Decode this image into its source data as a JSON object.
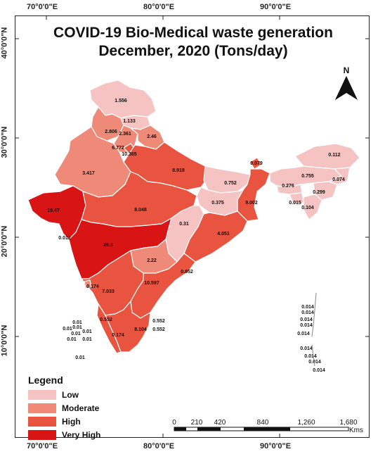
{
  "map": {
    "title_line1": "COVID-19 Bio-Medical waste generation",
    "title_line2": "December, 2020 (Tons/day)",
    "north_label": "N",
    "lon_labels": [
      "70°0'0\"E",
      "80°0'0\"E",
      "90°0'0\"E"
    ],
    "lat_labels": [
      "40°0'0\"N",
      "30°0'0\"N",
      "20°0'0\"N",
      "10°0'0\"N"
    ],
    "colors": {
      "low": "#f6c3c3",
      "moderate": "#f08a78",
      "high": "#e8543f",
      "very_high": "#d91414",
      "border": "#ffffff"
    },
    "values": {
      "jk": "1.556",
      "hp": "1.133",
      "pb": "2.806",
      "hr": "2.361",
      "uk": "2.46",
      "ch": "6.772",
      "dl": "10.365",
      "rj": "3.417",
      "up": "8.918",
      "bh": "0.752",
      "sk": "0.079",
      "ar": "0.112",
      "as": "0.755",
      "nl": "0.074",
      "ml": "0.276",
      "mn": "0.299",
      "tr": "0.015",
      "mz": "0.104",
      "jh": "0.375",
      "wb": "9.002",
      "gj": "19.47",
      "mp": "8.048",
      "ct": "0.31",
      "or": "4.051",
      "dd": "0.012",
      "mh": "26.3",
      "tg": "2.22",
      "ap": "0.852",
      "ka": "10.597",
      "ga": "0.174",
      "tn": "7.033",
      "kl": "0.552",
      "py": "0.552",
      "py2": "0.552",
      "tn2": "8.104",
      "ld": "0.01",
      "an": "0.014"
    },
    "lakshadweep_values": [
      "0.01",
      "0.01",
      "0.01",
      "0.01",
      "0.01",
      "0.01",
      "0.01",
      "0.01",
      "0.01"
    ],
    "andaman_values": [
      "0.014",
      "0.014",
      "0.014",
      "0.014",
      "0.014",
      "0.014",
      "0.014",
      "0.014"
    ],
    "legend": {
      "title": "Legend",
      "items": [
        {
          "label": "Low",
          "color": "#f6c3c3"
        },
        {
          "label": "Moderate",
          "color": "#f08a78"
        },
        {
          "label": "High",
          "color": "#e8543f"
        },
        {
          "label": "Very High",
          "color": "#d91414"
        }
      ]
    },
    "scale": {
      "ticks": [
        "0",
        "210",
        "420",
        "840",
        "1,260",
        "1,680"
      ],
      "unit": "Kms"
    }
  }
}
